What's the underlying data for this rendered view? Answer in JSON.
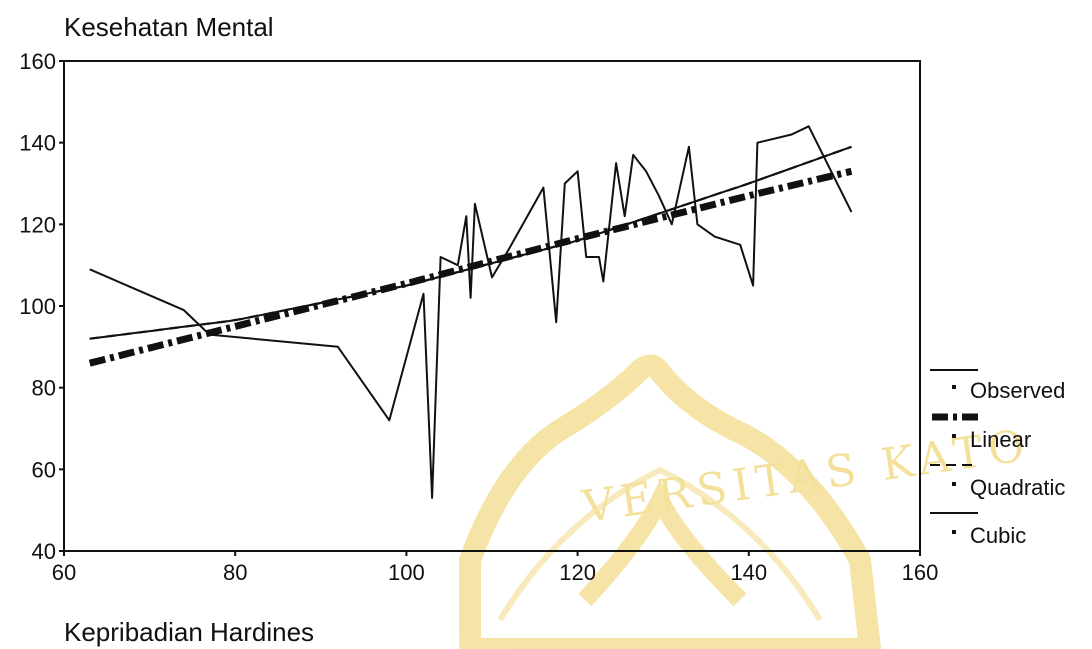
{
  "chart_data": {
    "type": "line",
    "title": "Kesehatan Mental",
    "xlabel": "Kepribadian Hardines",
    "ylabel": "Kesehatan Mental",
    "xlim": [
      60,
      160
    ],
    "ylim": [
      40,
      160
    ],
    "x_ticks": [
      "60",
      "80",
      "100",
      "120",
      "140",
      "160"
    ],
    "y_ticks": [
      "40",
      "60",
      "80",
      "100",
      "120",
      "140",
      "160"
    ],
    "grid": false,
    "legend_position": "right",
    "series": [
      {
        "name": "Observed",
        "style": "solid",
        "x": [
          63,
          74,
          77,
          92,
          98,
          102,
          103,
          104,
          106,
          107,
          107.5,
          108,
          110,
          112,
          116,
          117.5,
          118.5,
          120,
          121,
          122.5,
          123,
          124.5,
          125.5,
          126.5,
          128,
          129.5,
          131,
          133,
          134,
          136,
          139,
          140.5,
          141,
          145,
          147,
          152
        ],
        "y": [
          109,
          99,
          93,
          90,
          72,
          103,
          53,
          112,
          110,
          122,
          102,
          125,
          107,
          114,
          129,
          96,
          130,
          133,
          112,
          112,
          106,
          135,
          122,
          137,
          133,
          127,
          120,
          139,
          120,
          117,
          115,
          105,
          140,
          142,
          144,
          123
        ]
      },
      {
        "name": "Linear",
        "style": "heavy-dashed",
        "x": [
          63,
          80,
          100,
          120,
          140,
          152
        ],
        "y": [
          86,
          95,
          105.5,
          116.5,
          127,
          133
        ]
      },
      {
        "name": "Quadratic",
        "style": "dashed",
        "x": [
          63,
          80,
          100,
          120,
          140,
          152
        ],
        "y": [
          92,
          96.5,
          105,
          116,
          130,
          139
        ]
      },
      {
        "name": "Cubic",
        "style": "solid",
        "x": [
          63,
          80,
          100,
          120,
          140,
          152
        ],
        "y": [
          92,
          96.5,
          105,
          116,
          130,
          139
        ]
      }
    ]
  },
  "watermark_text": "VERSITAS KATO",
  "colors": {
    "ink": "#111111",
    "watermark": "#f2d77b"
  }
}
